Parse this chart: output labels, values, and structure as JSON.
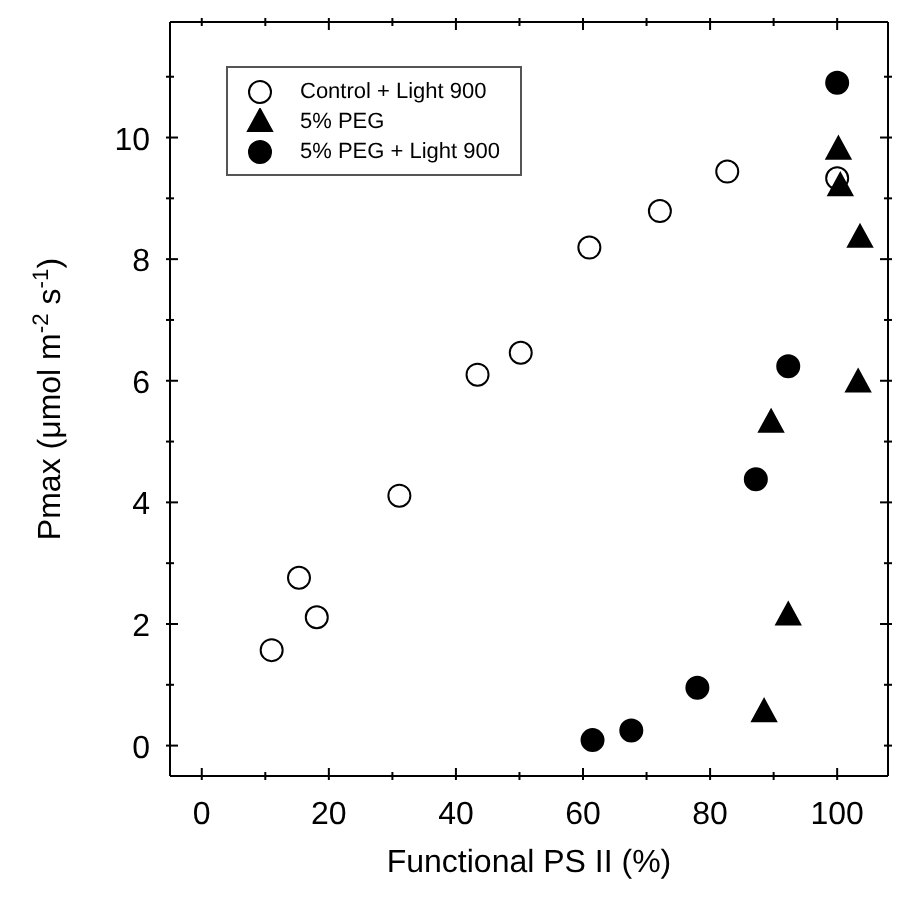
{
  "chart_data": {
    "type": "scatter",
    "xlabel": "Functional PS II (%)",
    "ylabel": "Pmax (μmol m$^{-2}$ s$^{-1}$)",
    "xlim": [
      -5,
      108
    ],
    "ylim": [
      -0.5,
      11.9
    ],
    "xticks": [
      0,
      {
        "value": 10,
        "label": null
      },
      20,
      {
        "value": 30,
        "label": null
      },
      40,
      {
        "value": 50,
        "label": null
      },
      60,
      {
        "value": 70,
        "label": null
      },
      80,
      {
        "value": 90,
        "label": null
      },
      100
    ],
    "yticks": [
      0,
      {
        "value": 1,
        "label": null
      },
      2,
      {
        "value": 3,
        "label": null
      },
      4,
      {
        "value": 5,
        "label": null
      },
      6,
      {
        "value": 7,
        "label": null
      },
      8,
      {
        "value": 9,
        "label": null
      },
      10,
      {
        "value": 11,
        "label": null
      }
    ],
    "legend": "top left",
    "series": [
      {
        "name": "Control + Light 900",
        "color": "#ffffff",
        "marker": "circle",
        "x": [
          11.0,
          15.3,
          18.1,
          31.1,
          43.4,
          50.2,
          61.0,
          72.1,
          82.7,
          100
        ],
        "values": [
          1.57,
          2.76,
          2.11,
          4.11,
          6.1,
          6.46,
          8.19,
          8.79,
          9.44,
          9.33
        ]
      },
      {
        "name": "5% PEG",
        "color": "#000000",
        "marker": "triangle",
        "x": [
          100.2,
          100.5,
          103.6,
          103.3,
          89.6,
          92.3,
          88.5
        ],
        "values": [
          9.8,
          9.2,
          8.35,
          5.97,
          5.31,
          2.14,
          0.55
        ]
      },
      {
        "name": "5% PEG + Light 900",
        "color": "#000000",
        "marker": "circle",
        "x": [
          100,
          92.3,
          87.2,
          78.0,
          67.6,
          61.5
        ],
        "values": [
          10.9,
          6.24,
          4.38,
          0.95,
          0.25,
          0.09
        ]
      }
    ]
  }
}
